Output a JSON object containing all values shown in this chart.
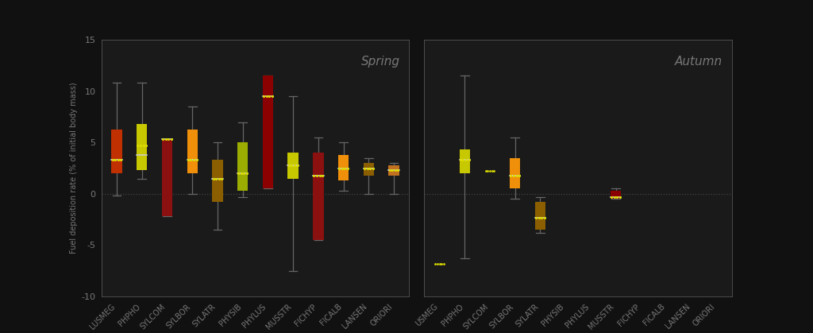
{
  "spring": {
    "species": [
      "LUSMEG",
      "PHPHO",
      "SYLCOM",
      "SYLBOR",
      "SYLATR",
      "PHYSIB",
      "PHYLUS",
      "MUSSTR",
      "FICHYP",
      "FICALB",
      "LANSEN",
      "ORIORI"
    ],
    "boxes": [
      {
        "q1": 2.0,
        "median": 3.3,
        "q3": 6.3,
        "mean": 3.3,
        "whislo": -0.2,
        "whishi": 10.8,
        "color": "#c03000"
      },
      {
        "q1": 2.3,
        "median": 3.8,
        "q3": 6.8,
        "mean": 4.7,
        "whislo": 1.5,
        "whishi": 10.8,
        "color": "#c8c800"
      },
      {
        "q1": -2.2,
        "median": 5.3,
        "q3": 5.3,
        "mean": 5.3,
        "whislo": -2.2,
        "whishi": 5.3,
        "color": "#8b1010"
      },
      {
        "q1": 2.0,
        "median": 3.3,
        "q3": 6.3,
        "mean": 3.3,
        "whislo": 0.0,
        "whishi": 8.5,
        "color": "#f0900a"
      },
      {
        "q1": -0.8,
        "median": 1.5,
        "q3": 3.3,
        "mean": 1.5,
        "whislo": -3.5,
        "whishi": 5.0,
        "color": "#8B5e00"
      },
      {
        "q1": 0.3,
        "median": 2.0,
        "q3": 5.0,
        "mean": 2.0,
        "whislo": -0.3,
        "whishi": 7.0,
        "color": "#9aad00"
      },
      {
        "q1": 0.5,
        "median": 9.5,
        "q3": 11.5,
        "mean": 9.5,
        "whislo": 0.5,
        "whishi": 11.5,
        "color": "#8B0000"
      },
      {
        "q1": 1.5,
        "median": 2.8,
        "q3": 4.0,
        "mean": 2.8,
        "whislo": -7.5,
        "whishi": 9.5,
        "color": "#c8c800"
      },
      {
        "q1": -4.5,
        "median": 1.8,
        "q3": 4.0,
        "mean": 1.8,
        "whislo": -4.5,
        "whishi": 5.5,
        "color": "#8b1010"
      },
      {
        "q1": 1.3,
        "median": 2.5,
        "q3": 3.8,
        "mean": 2.5,
        "whislo": 0.3,
        "whishi": 5.0,
        "color": "#f0900a"
      },
      {
        "q1": 1.8,
        "median": 2.5,
        "q3": 3.0,
        "mean": 2.5,
        "whislo": 0.0,
        "whishi": 3.5,
        "color": "#8B5e00"
      },
      {
        "q1": 1.8,
        "median": 2.3,
        "q3": 2.8,
        "mean": 2.3,
        "whislo": 0.0,
        "whishi": 3.0,
        "color": "#c07020"
      }
    ]
  },
  "autumn": {
    "species": [
      "USMEG",
      "PHPHO",
      "SYLCOM",
      "SYLBOR",
      "SYLATR",
      "PHYSIB",
      "PHYLUS",
      "MUSSTR",
      "FICHYP",
      "FICALB",
      "LANSEN",
      "ORIORI"
    ],
    "boxes": [
      {
        "q1": null,
        "median": null,
        "q3": null,
        "mean": -6.8,
        "whislo": -6.8,
        "whishi": -6.8,
        "color": null
      },
      {
        "q1": 2.0,
        "median": 3.3,
        "q3": 4.3,
        "mean": 3.3,
        "whislo": -6.3,
        "whishi": 11.5,
        "color": "#c8c800"
      },
      {
        "q1": null,
        "median": null,
        "q3": null,
        "mean": 2.2,
        "whislo": 2.2,
        "whishi": 2.2,
        "color": null
      },
      {
        "q1": 0.5,
        "median": 1.8,
        "q3": 3.5,
        "mean": 1.8,
        "whislo": -0.5,
        "whishi": 5.5,
        "color": "#f0900a"
      },
      {
        "q1": -3.5,
        "median": -2.3,
        "q3": -0.8,
        "mean": -2.3,
        "whislo": -3.8,
        "whishi": -0.3,
        "color": "#8B5e00"
      },
      {
        "q1": null,
        "median": null,
        "q3": null,
        "mean": null,
        "whislo": null,
        "whishi": null,
        "color": null
      },
      {
        "q1": null,
        "median": null,
        "q3": null,
        "mean": null,
        "whislo": null,
        "whishi": null,
        "color": null
      },
      {
        "q1": -0.5,
        "median": -0.3,
        "q3": 0.3,
        "mean": -0.3,
        "whislo": -0.5,
        "whishi": 0.5,
        "color": "#8B0000"
      },
      {
        "q1": null,
        "median": null,
        "q3": null,
        "mean": null,
        "whislo": null,
        "whishi": null,
        "color": null
      },
      {
        "q1": null,
        "median": null,
        "q3": null,
        "mean": null,
        "whislo": null,
        "whishi": null,
        "color": null
      },
      {
        "q1": null,
        "median": null,
        "q3": null,
        "mean": null,
        "whislo": null,
        "whishi": null,
        "color": null
      },
      {
        "q1": null,
        "median": null,
        "q3": null,
        "mean": null,
        "whislo": null,
        "whishi": null,
        "color": null
      }
    ]
  },
  "background_color": "#111111",
  "axes_color": "#1a1a1a",
  "text_color": "#777777",
  "whisker_color": "#666666",
  "median_color": "#cccccc",
  "mean_color": "#dddd00",
  "zero_line_color": "#444444",
  "spine_color": "#555555",
  "ylim": [
    -10,
    15
  ],
  "yticks": [
    -10,
    -5,
    0,
    5,
    10,
    15
  ],
  "ylabel": "Fuel deposition rate (% of initial body mass)",
  "spring_label": "Spring",
  "autumn_label": "Autumn",
  "tick_fontsize": 7,
  "ylabel_fontsize": 7,
  "season_fontsize": 11
}
